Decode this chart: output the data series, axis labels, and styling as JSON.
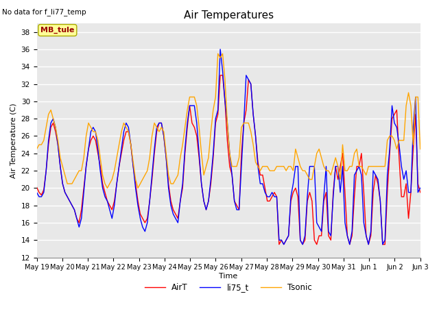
{
  "title": "Air Temperatures",
  "xlabel": "Time",
  "ylabel": "Air Temperature (C)",
  "ylim": [
    12,
    39
  ],
  "yticks": [
    12,
    14,
    16,
    18,
    20,
    22,
    24,
    26,
    28,
    30,
    32,
    34,
    36,
    38
  ],
  "note": "No data for f_li77_temp",
  "station_label": "MB_tule",
  "legend_labels": [
    "AirT",
    "li75_t",
    "Tsonic"
  ],
  "line_colors": [
    "#FF0000",
    "#0000FF",
    "#FFA500"
  ],
  "background_color": "#E8E8E8",
  "x_tick_labels": [
    "May 19",
    "May 20",
    "May 21",
    "May 22",
    "May 23",
    "May 24",
    "May 25",
    "May 26",
    "May 27",
    "May 28",
    "May 29",
    "May 30",
    "May 31",
    "Jun 1",
    "Jun 2",
    "Jun 3"
  ],
  "AirT": [
    20.1,
    19.5,
    19.2,
    19.8,
    22.0,
    25.0,
    27.0,
    27.5,
    26.5,
    25.0,
    22.5,
    20.5,
    19.5,
    19.0,
    18.5,
    18.0,
    17.5,
    16.5,
    16.0,
    17.5,
    20.0,
    22.5,
    24.5,
    25.5,
    26.0,
    25.5,
    24.0,
    22.5,
    20.5,
    19.5,
    18.5,
    18.0,
    17.5,
    18.5,
    20.5,
    22.5,
    24.0,
    25.5,
    26.5,
    26.5,
    25.0,
    22.5,
    20.5,
    18.5,
    17.0,
    16.5,
    16.0,
    16.5,
    18.5,
    21.0,
    24.0,
    26.5,
    27.5,
    27.5,
    26.0,
    23.5,
    20.5,
    18.5,
    17.5,
    17.0,
    16.5,
    18.5,
    20.0,
    24.0,
    27.0,
    29.5,
    27.5,
    27.0,
    26.0,
    23.5,
    20.5,
    18.5,
    17.5,
    18.5,
    20.5,
    23.5,
    27.5,
    28.5,
    33.0,
    33.0,
    30.0,
    25.5,
    22.5,
    21.5,
    18.5,
    18.0,
    17.5,
    24.0,
    27.5,
    29.0,
    32.5,
    32.0,
    28.5,
    26.0,
    23.0,
    21.5,
    21.5,
    20.0,
    18.5,
    18.5,
    19.0,
    19.5,
    19.0,
    13.5,
    14.0,
    13.5,
    14.0,
    14.5,
    18.5,
    19.5,
    20.0,
    19.0,
    14.0,
    13.5,
    14.0,
    18.5,
    19.5,
    18.5,
    14.0,
    13.5,
    14.5,
    14.5,
    18.5,
    19.5,
    14.5,
    14.0,
    19.5,
    22.5,
    21.0,
    22.5,
    24.0,
    19.5,
    14.5,
    13.5,
    14.5,
    19.0,
    22.5,
    22.5,
    24.0,
    19.5,
    14.5,
    13.5,
    14.5,
    19.5,
    21.5,
    20.5,
    18.5,
    13.5,
    13.5,
    19.5,
    24.0,
    28.0,
    28.5,
    29.0,
    23.5,
    19.0,
    19.0,
    20.5,
    16.5,
    19.5,
    24.5,
    28.5,
    20.5,
    19.5
  ],
  "li75_t": [
    19.5,
    19.0,
    19.0,
    19.5,
    22.0,
    25.5,
    27.5,
    28.0,
    27.0,
    25.0,
    22.5,
    20.5,
    19.5,
    19.0,
    18.5,
    18.0,
    17.5,
    16.5,
    15.5,
    16.5,
    19.5,
    22.5,
    24.5,
    26.5,
    27.0,
    26.5,
    24.5,
    22.0,
    20.0,
    19.0,
    18.5,
    17.5,
    16.5,
    18.0,
    20.5,
    22.5,
    24.5,
    26.5,
    27.5,
    27.0,
    25.0,
    22.5,
    20.0,
    18.0,
    16.5,
    15.5,
    15.0,
    16.0,
    18.5,
    21.5,
    24.5,
    27.0,
    27.5,
    27.5,
    26.0,
    23.5,
    20.0,
    18.0,
    17.0,
    16.5,
    16.0,
    18.5,
    20.5,
    24.5,
    27.5,
    29.5,
    29.5,
    29.5,
    27.5,
    24.0,
    20.5,
    18.5,
    17.5,
    18.5,
    21.0,
    24.0,
    28.0,
    29.0,
    36.0,
    33.5,
    30.0,
    27.5,
    24.0,
    21.5,
    18.5,
    17.5,
    17.5,
    22.5,
    27.5,
    33.0,
    32.5,
    32.0,
    28.5,
    26.0,
    22.5,
    20.5,
    20.5,
    19.5,
    19.0,
    19.0,
    19.5,
    19.0,
    19.0,
    14.0,
    14.0,
    13.5,
    14.0,
    14.5,
    19.0,
    20.5,
    22.5,
    22.5,
    14.0,
    13.5,
    14.5,
    19.0,
    22.5,
    22.5,
    22.5,
    16.0,
    15.5,
    15.0,
    19.0,
    22.5,
    15.0,
    14.5,
    19.0,
    22.5,
    22.5,
    19.5,
    22.5,
    16.0,
    14.5,
    13.5,
    15.0,
    21.5,
    22.0,
    22.5,
    21.5,
    16.0,
    14.5,
    13.5,
    15.0,
    22.0,
    21.5,
    21.0,
    18.5,
    13.5,
    14.0,
    21.5,
    24.5,
    29.5,
    27.5,
    27.0,
    25.0,
    22.5,
    21.0,
    22.0,
    19.5,
    19.5,
    27.0,
    30.5,
    19.5,
    20.0
  ],
  "Tsonic": [
    24.5,
    25.0,
    25.0,
    25.5,
    27.0,
    28.5,
    29.0,
    28.0,
    27.0,
    25.5,
    23.5,
    22.5,
    21.5,
    20.5,
    20.5,
    20.5,
    21.0,
    21.5,
    22.0,
    22.0,
    23.5,
    26.0,
    27.5,
    27.0,
    26.5,
    26.5,
    25.5,
    23.5,
    21.5,
    20.5,
    20.0,
    20.5,
    21.0,
    22.0,
    23.5,
    25.0,
    26.5,
    27.5,
    27.0,
    26.5,
    25.0,
    23.0,
    21.0,
    20.0,
    20.5,
    21.0,
    21.5,
    22.0,
    23.5,
    26.0,
    27.5,
    27.0,
    26.5,
    27.0,
    26.5,
    24.0,
    21.5,
    20.5,
    20.5,
    21.0,
    21.5,
    23.5,
    25.0,
    27.0,
    29.0,
    30.5,
    30.5,
    30.5,
    29.5,
    27.0,
    24.0,
    21.5,
    22.5,
    23.5,
    26.5,
    29.0,
    30.5,
    35.5,
    35.0,
    35.5,
    32.5,
    27.5,
    24.0,
    22.5,
    22.5,
    22.5,
    23.5,
    27.0,
    27.5,
    27.5,
    27.5,
    26.5,
    25.0,
    23.0,
    22.5,
    22.0,
    22.5,
    22.5,
    22.5,
    22.0,
    22.0,
    22.0,
    22.5,
    22.5,
    22.5,
    22.5,
    22.0,
    22.5,
    22.5,
    22.0,
    24.5,
    23.5,
    22.5,
    22.0,
    22.0,
    21.5,
    21.0,
    21.0,
    22.5,
    24.0,
    24.5,
    23.5,
    22.5,
    22.0,
    22.0,
    21.5,
    22.5,
    23.5,
    22.5,
    21.0,
    25.0,
    22.0,
    22.0,
    22.5,
    22.5,
    24.0,
    24.5,
    22.5,
    22.5,
    22.0,
    21.5,
    22.5,
    22.5,
    22.5,
    22.5,
    22.5,
    22.5,
    22.5,
    22.5,
    25.5,
    26.0,
    26.0,
    25.5,
    24.5,
    25.5,
    25.5,
    25.5,
    29.5,
    31.0,
    29.5,
    25.0,
    30.5,
    30.5,
    24.5
  ]
}
